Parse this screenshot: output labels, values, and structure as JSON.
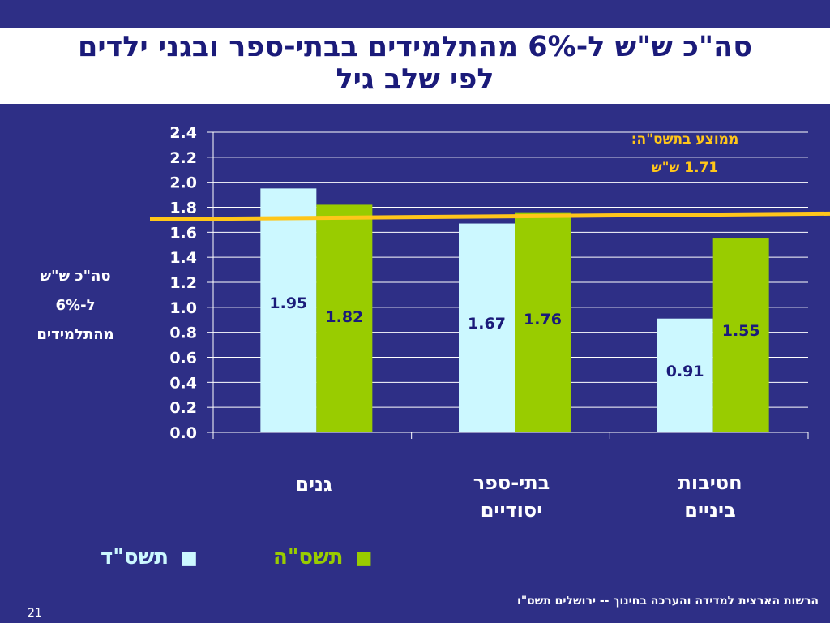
{
  "title": {
    "line1": "סה\"כ ש\"ש ל-6% מהתלמידים בבתי-ספר ובגני ילדים",
    "line2": "לפי שלב גיל"
  },
  "y_axis_label": {
    "line1": "סה\"כ ש\"ש",
    "line2": "ל-6%",
    "line3": "מהתלמידים"
  },
  "average_note": {
    "line1": "ממוצע בתשס\"ה:",
    "line2": "1.71 ש\"ש",
    "value": 1.71,
    "color": "#ffc61a"
  },
  "legend": [
    {
      "label": "תשס\"ד",
      "icon": "■",
      "color": "#ccf8ff"
    },
    {
      "label": "תשס\"ה",
      "icon": "■",
      "color": "#99cc00"
    }
  ],
  "footer": {
    "source": "הרשות הארצית למדידה והערכה בחינוך -- ירושלים תשס\"ו",
    "page_number": "21"
  },
  "chart_data": {
    "type": "bar",
    "categories": [
      {
        "line1": "גנים",
        "line2": ""
      },
      {
        "line1": "בתי-ספר",
        "line2": "יסודיים"
      },
      {
        "line1": "חטיבות",
        "line2": "ביניים"
      }
    ],
    "series": [
      {
        "name": "תשס\"ד",
        "values": [
          1.95,
          1.67,
          0.91
        ],
        "labels": [
          "1.95",
          "1.67",
          "0.91"
        ],
        "color": "#ccf8ff"
      },
      {
        "name": "תשס\"ה",
        "values": [
          1.82,
          1.76,
          1.55
        ],
        "labels": [
          "1.82",
          "1.76",
          "1.55"
        ],
        "color": "#99cc00"
      }
    ],
    "ylim": [
      0,
      2.4
    ],
    "yticks": [
      "0.0",
      "0.2",
      "0.4",
      "0.6",
      "0.8",
      "1.0",
      "1.2",
      "1.4",
      "1.6",
      "1.8",
      "2.0",
      "2.2",
      "2.4"
    ],
    "grid": true,
    "reference_line": {
      "value": 1.71,
      "color": "#ffc61a"
    },
    "legend_position": "bottom"
  }
}
